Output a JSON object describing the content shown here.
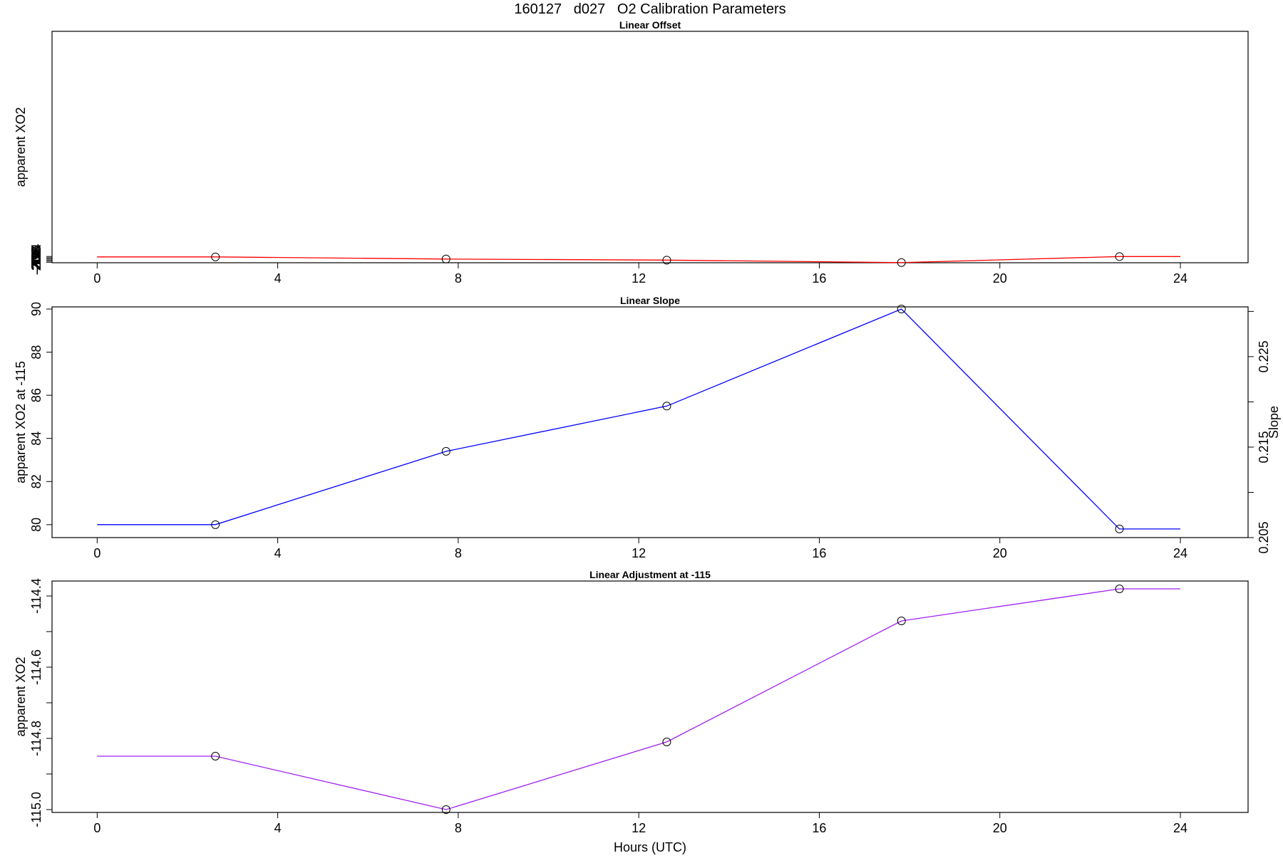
{
  "figure": {
    "title": "160127   d027   O2 Calibration Parameters",
    "xlabel": "Hours (UTC)"
  },
  "colors": {
    "background": "#ffffff",
    "axis": "#000000",
    "marker": "#000000"
  },
  "chart_data": [
    {
      "type": "line",
      "title": "Linear Offset",
      "xlabel": "",
      "ylabel": "apparent XO2",
      "color": "#ff0000",
      "xlim": [
        -1,
        25.5
      ],
      "ylim": [
        -204.8,
        193.8
      ],
      "xticks": [
        0,
        4,
        8,
        12,
        16,
        20,
        24
      ],
      "yticks": [
        -204,
        -202,
        -200,
        -198,
        -196,
        -194
      ],
      "ytick_labels": [
        "-204",
        "-202",
        "-200",
        "-198",
        "-196",
        "-194"
      ],
      "x": [
        0,
        2.62,
        7.73,
        12.62,
        17.82,
        22.65,
        24
      ],
      "y": [
        -194.8,
        -194.8,
        -198.4,
        -200.3,
        -204.5,
        -194.15,
        -194.15
      ],
      "markers": [
        false,
        true,
        true,
        true,
        true,
        true,
        false
      ]
    },
    {
      "type": "line",
      "title": "Linear Slope",
      "xlabel": "",
      "ylabel": "apparent XO2 at -115",
      "ylabel_right": "Slope",
      "color": "#0000ff",
      "xlim": [
        -1,
        25.5
      ],
      "ylim": [
        79.4,
        90.1
      ],
      "xticks": [
        0,
        4,
        8,
        12,
        16,
        20,
        24
      ],
      "yticks": [
        80,
        82,
        84,
        86,
        88,
        90
      ],
      "ytick_labels": [
        "80",
        "82",
        "84",
        "86",
        "88",
        "90"
      ],
      "right_axis": {
        "ylim": [
          0.205,
          0.2305
        ],
        "ticks": [
          0.205,
          0.21,
          0.215,
          0.22,
          0.225,
          0.23
        ],
        "tick_labels": [
          "0.205",
          "",
          "0.215",
          "",
          "0.225",
          ""
        ]
      },
      "x": [
        0,
        2.62,
        7.73,
        12.62,
        17.82,
        22.65,
        24
      ],
      "y": [
        80.0,
        80.0,
        83.4,
        85.5,
        90.0,
        79.8,
        79.8
      ],
      "markers": [
        false,
        true,
        true,
        true,
        true,
        true,
        false
      ]
    },
    {
      "type": "line",
      "title": "Linear Adjustment at -115",
      "xlabel": "Hours (UTC)",
      "ylabel": "apparent XO2",
      "color": "#a020f0",
      "xlim": [
        -1,
        25.5
      ],
      "ylim": [
        -115.008,
        -114.358
      ],
      "xticks": [
        0,
        4,
        8,
        12,
        16,
        20,
        24
      ],
      "yticks": [
        -115.0,
        -114.9,
        -114.8,
        -114.7,
        -114.6,
        -114.5,
        -114.4
      ],
      "ytick_labels": [
        "-115.0",
        "",
        "-114.8",
        "",
        "-114.6",
        "",
        "-114.4"
      ],
      "x": [
        0,
        2.62,
        7.73,
        12.62,
        17.82,
        22.65,
        24
      ],
      "y": [
        -114.85,
        -114.85,
        -115.0,
        -114.81,
        -114.47,
        -114.38,
        -114.38
      ],
      "markers": [
        false,
        true,
        true,
        true,
        true,
        true,
        false
      ]
    }
  ]
}
